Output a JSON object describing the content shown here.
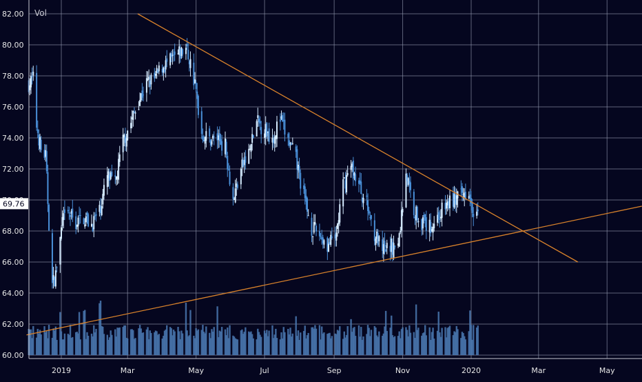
{
  "chart_data": {
    "type": "candlestick",
    "title": "",
    "volume_label": "Vol",
    "last_price_label": "69.76",
    "ylim": [
      60,
      82.5
    ],
    "y_ticks": [
      "60.00",
      "62.00",
      "64.00",
      "66.00",
      "68.00",
      "70.00",
      "72.00",
      "74.00",
      "76.00",
      "78.00",
      "80.00",
      "82.00"
    ],
    "x_ticks": [
      {
        "label": "2019",
        "date": "2019-01-01"
      },
      {
        "label": "Mar",
        "date": "2019-03-01"
      },
      {
        "label": "May",
        "date": "2019-05-01"
      },
      {
        "label": "Jul",
        "date": "2019-07-01"
      },
      {
        "label": "Sep",
        "date": "2019-09-01"
      },
      {
        "label": "Nov",
        "date": "2019-11-01"
      },
      {
        "label": "2020",
        "date": "2020-01-01"
      },
      {
        "label": "Mar",
        "date": "2020-03-01"
      },
      {
        "label": "May",
        "date": "2020-05-01"
      }
    ],
    "xlim": [
      "2018-12-01",
      "2020-06-01"
    ],
    "price_path": [
      [
        "2018-12-03",
        77.5
      ],
      [
        "2018-12-07",
        77.8
      ],
      [
        "2018-12-10",
        74.8
      ],
      [
        "2018-12-14",
        73.2
      ],
      [
        "2018-12-18",
        72.8
      ],
      [
        "2018-12-21",
        68.5
      ],
      [
        "2018-12-24",
        64.5
      ],
      [
        "2018-12-27",
        65.2
      ],
      [
        "2019-01-02",
        68.6
      ],
      [
        "2019-01-08",
        69.1
      ],
      [
        "2019-01-14",
        68.5
      ],
      [
        "2019-01-21",
        68.9
      ],
      [
        "2019-01-28",
        68.4
      ],
      [
        "2019-02-04",
        69.3
      ],
      [
        "2019-02-11",
        71.5
      ],
      [
        "2019-02-18",
        71.0
      ],
      [
        "2019-02-25",
        73.8
      ],
      [
        "2019-03-04",
        75.0
      ],
      [
        "2019-03-11",
        76.4
      ],
      [
        "2019-03-18",
        77.5
      ],
      [
        "2019-03-25",
        77.8
      ],
      [
        "2019-04-01",
        78.6
      ],
      [
        "2019-04-08",
        78.9
      ],
      [
        "2019-04-15",
        79.3
      ],
      [
        "2019-04-22",
        79.8
      ],
      [
        "2019-04-26",
        78.8
      ],
      [
        "2019-04-30",
        77.4
      ],
      [
        "2019-05-06",
        74.3
      ],
      [
        "2019-05-13",
        73.9
      ],
      [
        "2019-05-20",
        74.0
      ],
      [
        "2019-05-27",
        73.5
      ],
      [
        "2019-06-03",
        70.0
      ],
      [
        "2019-06-10",
        72.0
      ],
      [
        "2019-06-17",
        73.0
      ],
      [
        "2019-06-24",
        75.0
      ],
      [
        "2019-07-01",
        74.6
      ],
      [
        "2019-07-08",
        74.0
      ],
      [
        "2019-07-15",
        75.2
      ],
      [
        "2019-07-22",
        73.8
      ],
      [
        "2019-07-29",
        72.6
      ],
      [
        "2019-08-05",
        70.2
      ],
      [
        "2019-08-12",
        68.2
      ],
      [
        "2019-08-19",
        67.8
      ],
      [
        "2019-08-26",
        67.1
      ],
      [
        "2019-09-02",
        67.4
      ],
      [
        "2019-09-09",
        70.9
      ],
      [
        "2019-09-16",
        72.2
      ],
      [
        "2019-09-23",
        70.9
      ],
      [
        "2019-09-30",
        69.7
      ],
      [
        "2019-10-07",
        67.9
      ],
      [
        "2019-10-14",
        66.6
      ],
      [
        "2019-10-21",
        67.0
      ],
      [
        "2019-10-28",
        67.0
      ],
      [
        "2019-11-04",
        71.8
      ],
      [
        "2019-11-11",
        69.4
      ],
      [
        "2019-11-18",
        68.6
      ],
      [
        "2019-11-25",
        68.2
      ],
      [
        "2019-12-02",
        68.9
      ],
      [
        "2019-12-09",
        69.6
      ],
      [
        "2019-12-16",
        70.0
      ],
      [
        "2019-12-23",
        70.2
      ],
      [
        "2019-12-30",
        70.8
      ],
      [
        "2020-01-03",
        69.3
      ],
      [
        "2020-01-07",
        69.8
      ]
    ],
    "trendlines": [
      {
        "name": "resistance",
        "color": "#d9822b",
        "from": [
          "2019-03-10",
          82.0
        ],
        "to": [
          "2020-04-05",
          66.0
        ]
      },
      {
        "name": "support",
        "color": "#d9822b",
        "from": [
          "2018-12-01",
          61.3
        ],
        "to": [
          "2020-06-01",
          69.6
        ]
      }
    ],
    "colors": {
      "background": "#05061f",
      "grid": "#9aa0b5",
      "up_candle": "#d6ecff",
      "down_candle": "#4a90d9",
      "volume": "#4a78b0",
      "axis_text": "#e6e6e6",
      "price_label_bg": "#ffffff",
      "price_label_text": "#05061f"
    }
  }
}
